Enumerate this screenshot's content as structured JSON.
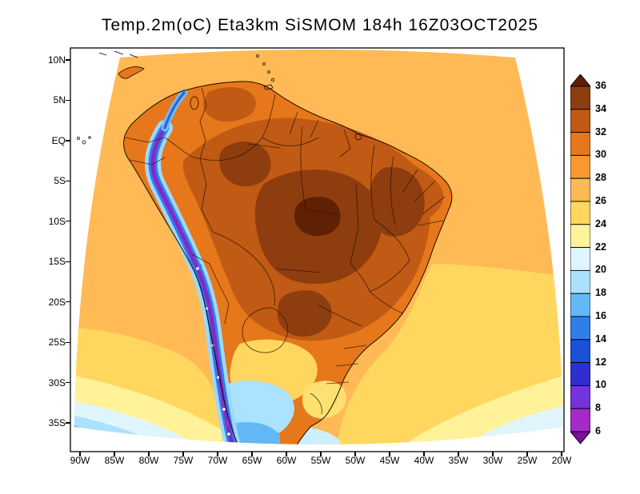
{
  "title": "Temp.2m(oC) Eta3km SiSMOM 184h 16Z03OCT2025",
  "axes": {
    "lat_labels": [
      "10N",
      "5N",
      "EQ",
      "5S",
      "10S",
      "15S",
      "20S",
      "25S",
      "30S",
      "35S"
    ],
    "lon_labels": [
      "90W",
      "85W",
      "80W",
      "75W",
      "70W",
      "65W",
      "60W",
      "55W",
      "50W",
      "45W",
      "40W",
      "35W",
      "30W",
      "25W",
      "20W"
    ]
  },
  "colorbar": {
    "tick_labels": [
      "36",
      "34",
      "32",
      "30",
      "28",
      "26",
      "24",
      "22",
      "20",
      "18",
      "16",
      "14",
      "12",
      "10",
      "8",
      "6"
    ],
    "colors_top_to_bottom": [
      "#5f2004",
      "#8e3d0f",
      "#c05a14",
      "#e6771a",
      "#f8992e",
      "#ffba55",
      "#ffd75e",
      "#fff299",
      "#dff6ff",
      "#aae2ff",
      "#63b8f7",
      "#2f7fe8",
      "#1b50d8",
      "#2f2fd0",
      "#7433dd",
      "#a52ac8",
      "#7c0f9b"
    ]
  },
  "chart_data": {
    "type": "heatmap",
    "title": "Temp.2m(oC) Eta3km SiSMOM 184h 16Z03OCT2025",
    "variable": "2 m temperature (oC)",
    "model": "Eta3km SiSMOM",
    "forecast_hour": 184,
    "init_time": "16Z03OCT2025",
    "lat_ticks": [
      "10N",
      "5N",
      "EQ",
      "5S",
      "10S",
      "15S",
      "20S",
      "25S",
      "30S",
      "35S"
    ],
    "lon_ticks": [
      "90W",
      "85W",
      "80W",
      "75W",
      "70W",
      "65W",
      "60W",
      "55W",
      "50W",
      "45W",
      "40W",
      "35W",
      "30W",
      "25W",
      "20W"
    ],
    "scale_degC": [
      6,
      8,
      10,
      12,
      14,
      16,
      18,
      20,
      22,
      24,
      26,
      28,
      30,
      32,
      34,
      36
    ],
    "legend_position": "right",
    "field_summary": [
      {
        "region": "central and interior Brazil",
        "approx_degC": "32-36"
      },
      {
        "region": "Amazon basin / northern Brazil",
        "approx_degC": "30-34"
      },
      {
        "region": "tropical Atlantic and Pacific oceans",
        "approx_degC": "26-28"
      },
      {
        "region": "Andes cordillera (Peru-Chile)",
        "approx_degC": "below 6-16"
      },
      {
        "region": "northern Argentina / Paraguay",
        "approx_degC": "20-26"
      },
      {
        "region": "southern oceans near 35S",
        "approx_degC": "16-24"
      }
    ]
  }
}
